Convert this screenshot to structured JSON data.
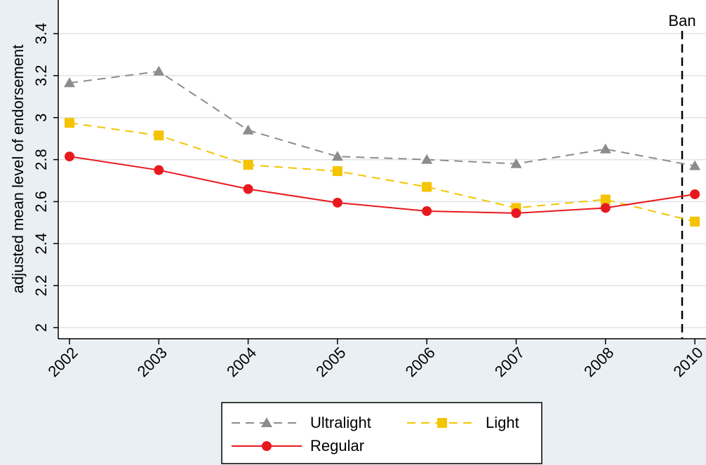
{
  "chart_data": {
    "type": "line",
    "y_label": "adjusted mean level of endorsement",
    "categories": [
      "2002",
      "2003",
      "2004",
      "2005",
      "2006",
      "2007",
      "2008",
      "2010"
    ],
    "series": [
      {
        "name": "Ultralight",
        "color": "#8c8c8c",
        "marker": "triangle",
        "dash": true,
        "values": [
          3.165,
          3.22,
          2.94,
          2.815,
          2.8,
          2.78,
          2.85,
          2.77
        ]
      },
      {
        "name": "Light",
        "color": "#f5c400",
        "marker": "square",
        "dash": true,
        "values": [
          2.975,
          2.915,
          2.775,
          2.745,
          2.67,
          2.57,
          2.61,
          2.505
        ]
      },
      {
        "name": "Regular",
        "color": "#e8191e",
        "marker": "circle",
        "dash": false,
        "values": [
          2.815,
          2.75,
          2.66,
          2.595,
          2.555,
          2.545,
          2.57,
          2.635
        ]
      }
    ],
    "annotation": "Ban",
    "ylim": [
      1.947,
      3.56
    ],
    "yticks": [
      2,
      2.2,
      2.4,
      2.6,
      2.8,
      3,
      3.2,
      3.4
    ],
    "grid": true
  }
}
